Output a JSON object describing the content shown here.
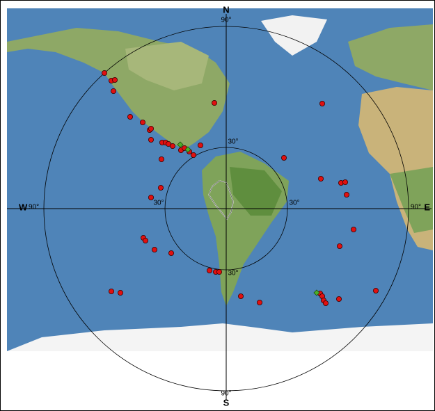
{
  "compass": {
    "north": "N",
    "south": "S",
    "west": "W",
    "east": "E"
  },
  "rings": {
    "outer": {
      "top": "90°",
      "bottom": "90°",
      "left": "90°",
      "right": "90°"
    },
    "inner": {
      "top": "30°",
      "bottom": "30°",
      "left": "30°",
      "right": "30°"
    }
  }
}
